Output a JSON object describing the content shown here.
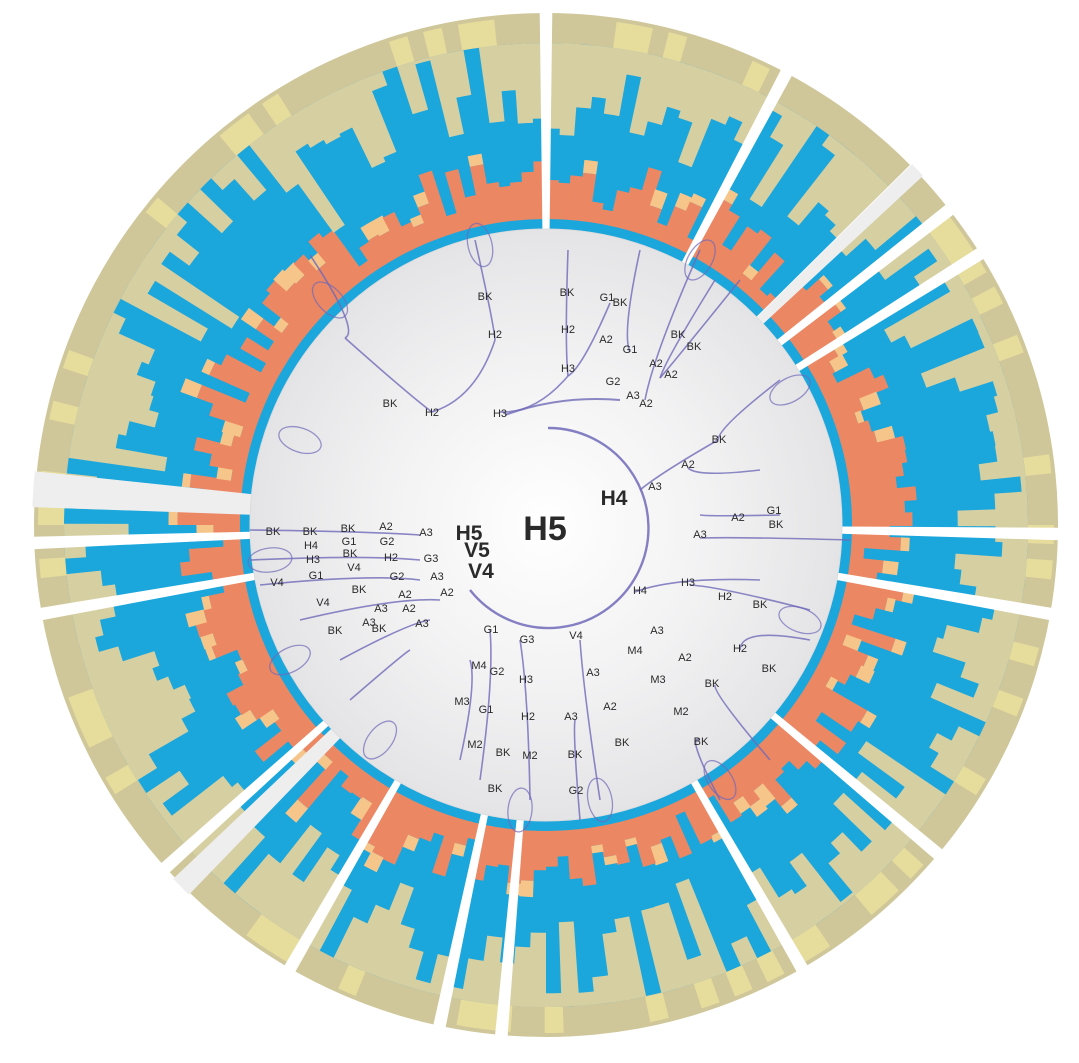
{
  "diagram": {
    "type": "radial-tree-with-stacked-ring",
    "root_label": "H5",
    "colors": {
      "outer_band": "#cfc79a",
      "outer_band_light": "#e6dc9c",
      "main_blue": "#1ba6dc",
      "salmon": "#ec8763",
      "peach": "#f6c589",
      "inner_disc": "#f1f1f2",
      "edge": "#6f6ab8",
      "separator": "#ffffff"
    },
    "hub_labels": [
      {
        "id": "hub-h5-main",
        "text": "H5"
      },
      {
        "id": "hub-h4",
        "text": "H4"
      },
      {
        "id": "hub-h5-left",
        "text": "H5"
      },
      {
        "id": "hub-v5",
        "text": "V5"
      },
      {
        "id": "hub-v4",
        "text": "V4"
      }
    ],
    "node_labels": [
      "BK",
      "H2",
      "BK",
      "H2",
      "H3",
      "BK",
      "G1",
      "BK",
      "H2",
      "H3",
      "A2",
      "G1",
      "BK",
      "BK",
      "A2",
      "A2",
      "G2",
      "A3",
      "A2",
      "BK",
      "A2",
      "A3",
      "A2",
      "G1",
      "BK",
      "A3",
      "H4",
      "H3",
      "H2",
      "BK",
      "A3",
      "A2",
      "H2",
      "BK",
      "M4",
      "M3",
      "BK",
      "M2",
      "BK",
      "BK",
      "V4",
      "A3",
      "A2",
      "A3",
      "BK",
      "G2",
      "G1",
      "G3",
      "M4",
      "G2",
      "H3",
      "M3",
      "G1",
      "H2",
      "M2",
      "BK",
      "M2",
      "BK",
      "BK",
      "BK",
      "BK",
      "A2",
      "A3",
      "H4",
      "G1",
      "G2",
      "H3",
      "BK",
      "H2",
      "V4",
      "G3",
      "V4",
      "G1",
      "G2",
      "A3",
      "V4",
      "BK",
      "A2",
      "A3",
      "A2",
      "A3",
      "A2",
      "BK",
      "BK",
      "A3",
      "A2",
      "BK"
    ]
  }
}
